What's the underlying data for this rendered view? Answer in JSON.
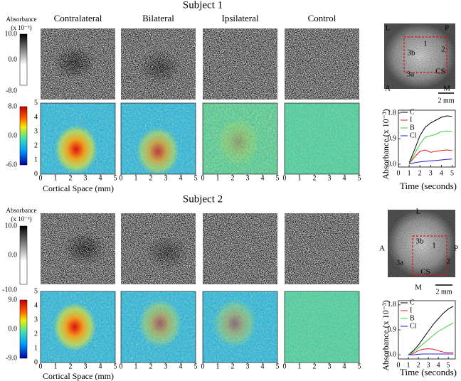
{
  "subjects": [
    {
      "title": "Subject 1",
      "conditions": [
        "Contralateral",
        "Bilateral",
        "Ipsilateral",
        "Control"
      ],
      "gray_scale": {
        "label": "Absorbance",
        "unit": "(x 10⁻³)",
        "ticks": [
          "10.0",
          "0.0",
          "-8.0"
        ]
      },
      "color_scale": {
        "ticks": [
          "8.0",
          "0.0",
          "-6.0"
        ]
      },
      "axis_ticks": [
        "0",
        "1",
        "2",
        "3",
        "4",
        "5"
      ],
      "axis_label": "Cortical Space (mm)",
      "photo_labels": {
        "corners": [
          "L",
          "P",
          "A",
          "M"
        ],
        "areas": [
          "3b",
          "1",
          "2",
          "3a",
          "CS"
        ],
        "scale": "2 mm"
      }
    },
    {
      "title": "Subject 2",
      "gray_scale": {
        "label": "Absorbance",
        "unit": "(x 10⁻³)",
        "ticks": [
          "10.0",
          "0.0",
          "-10.0"
        ]
      },
      "color_scale": {
        "ticks": [
          "9.0",
          "0.0",
          "-9.0"
        ]
      },
      "axis_ticks": [
        "0",
        "1",
        "2",
        "3",
        "4",
        "5"
      ],
      "axis_label": "Cortical Space (mm)",
      "photo_labels": {
        "corners": [
          "L",
          "A",
          "P",
          "M"
        ],
        "areas": [
          "3b",
          "1",
          "3a",
          "2",
          "CS"
        ],
        "scale": "2 mm"
      }
    }
  ],
  "chart_data": [
    {
      "type": "line",
      "ylabel": "Absorbance (x 10⁻³)",
      "xlabel": "Time (seconds)",
      "x": [
        1,
        1.5,
        2,
        2.5,
        3,
        3.5,
        4,
        4.5,
        5
      ],
      "xlim": [
        0,
        5.3
      ],
      "xticks": [
        0,
        1,
        2,
        3,
        4,
        5
      ],
      "ylim": [
        -0.1,
        1.9
      ],
      "yticks": [
        {
          "value": 0,
          "label": "0.0"
        },
        0.9,
        1.8
      ],
      "series": [
        {
          "name": "C",
          "color": "#000000",
          "values": [
            0.05,
            0.5,
            1.0,
            1.3,
            1.45,
            1.55,
            1.65,
            1.7,
            1.68
          ]
        },
        {
          "name": "I",
          "color": "#e02020",
          "values": [
            0.02,
            0.25,
            0.45,
            0.5,
            0.42,
            0.45,
            0.48,
            0.5,
            0.48
          ]
        },
        {
          "name": "B",
          "color": "#40d040",
          "values": [
            0.03,
            0.35,
            0.7,
            0.95,
            1.0,
            1.05,
            1.15,
            1.17,
            1.15
          ]
        },
        {
          "name": "Cl",
          "color": "#2020d0",
          "values": [
            0.0,
            0.05,
            0.08,
            0.1,
            0.12,
            0.13,
            0.15,
            0.17,
            0.18
          ]
        }
      ]
    },
    {
      "type": "line",
      "ylabel": "Absorbance (x 10⁻³)",
      "xlabel": "Time (seconds)",
      "x": [
        1,
        1.5,
        2,
        2.5,
        3,
        3.5,
        4,
        4.5,
        5,
        5.5
      ],
      "xlim": [
        0,
        5.7
      ],
      "xticks": [
        0,
        1,
        2,
        3,
        4,
        5
      ],
      "ylim": [
        -0.15,
        1.95
      ],
      "yticks": [
        {
          "value": 0,
          "label": "0.0"
        },
        0.9,
        1.8
      ],
      "series": [
        {
          "name": "C",
          "color": "#000000",
          "values": [
            0.0,
            0.15,
            0.35,
            0.6,
            0.85,
            1.1,
            1.3,
            1.5,
            1.65,
            1.75
          ]
        },
        {
          "name": "I",
          "color": "#e02020",
          "values": [
            0.0,
            0.05,
            0.15,
            0.2,
            0.22,
            0.2,
            0.15,
            0.1,
            0.08,
            0.08
          ]
        },
        {
          "name": "B",
          "color": "#40d040",
          "values": [
            0.0,
            0.1,
            0.25,
            0.4,
            0.55,
            0.7,
            0.85,
            0.95,
            1.05,
            1.15
          ]
        },
        {
          "name": "Cl",
          "color": "#2020d0",
          "values": [
            0.0,
            0.0,
            0.02,
            0.03,
            0.03,
            0.03,
            0.03,
            0.03,
            0.03,
            0.03
          ]
        }
      ]
    }
  ]
}
